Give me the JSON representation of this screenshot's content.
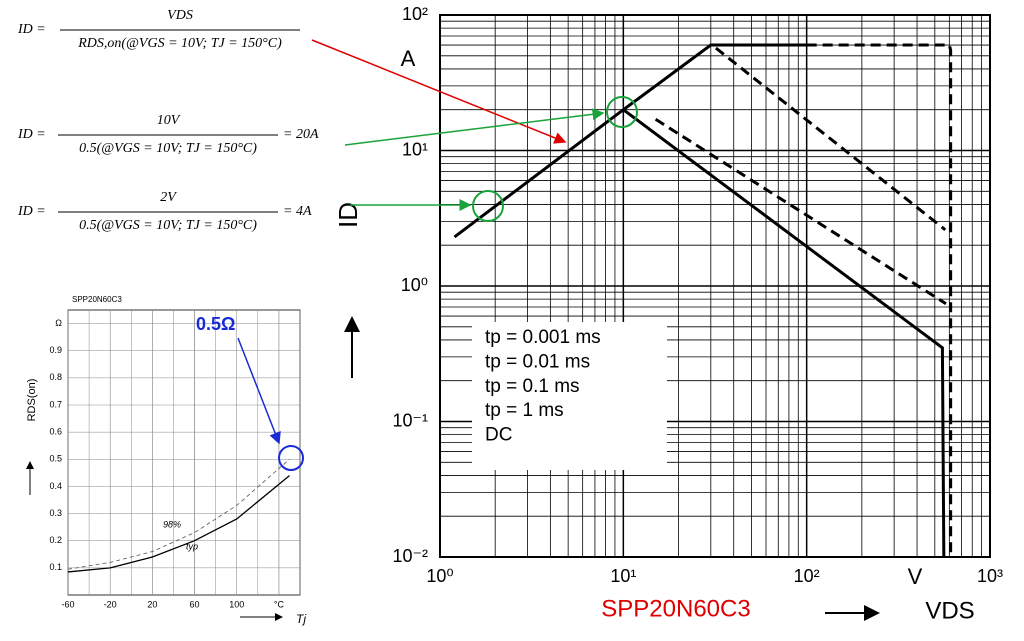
{
  "equations": [
    {
      "lhs": "ID =",
      "numerator": "VDS",
      "denominator": "RDS,on(@VGS = 10V; TJ = 150°C)",
      "rhs": ""
    },
    {
      "lhs": "ID =",
      "numerator": "10V",
      "denominator": "0.5(@VGS = 10V; TJ = 150°C)",
      "rhs": "= 20A"
    },
    {
      "lhs": "ID =",
      "numerator": "2V",
      "denominator": "0.5(@VGS = 10V; TJ = 150°C)",
      "rhs": "= 4A"
    }
  ],
  "annotation": "0.5Ω",
  "chart_data": [
    {
      "type": "line",
      "xlog": true,
      "ylog": true,
      "grid": true,
      "minor_grid": true,
      "ylabel": "ID",
      "yunit": "A",
      "xlabel": "VDS",
      "xunit": "V",
      "caption": "SPP20N60C3",
      "xlim": [
        1,
        1000
      ],
      "ylim": [
        0.01,
        100
      ],
      "xticks": [
        {
          "value": 1,
          "label": "10⁰"
        },
        {
          "value": 10,
          "label": "10¹"
        },
        {
          "value": 100,
          "label": "10²"
        },
        {
          "value": 1000,
          "label": "10³"
        }
      ],
      "yticks": [
        {
          "value": 0.01,
          "label": "10⁻²"
        },
        {
          "value": 0.1,
          "label": "10⁻¹"
        },
        {
          "value": 1,
          "label": "10⁰"
        },
        {
          "value": 10,
          "label": "10¹"
        },
        {
          "value": 100,
          "label": "10²"
        }
      ],
      "series": [
        {
          "name": "tp = 0.001 ms",
          "color": "#000000",
          "dash": "10,6",
          "x": [
            100,
            600,
            610,
            610
          ],
          "values": [
            60,
            60,
            55,
            0.01
          ]
        },
        {
          "name": "tp = 0.01 ms",
          "color": "#000000",
          "dash": "10,6",
          "x": [
            32,
            570
          ],
          "values": [
            57,
            2.6
          ]
        },
        {
          "name": "tp = 0.1 ms",
          "color": "#000000",
          "dash": "10,6",
          "x": [
            15,
            575
          ],
          "values": [
            17,
            0.74
          ]
        },
        {
          "name": "tp = 1 ms",
          "color": "#000000",
          "dash": "none",
          "x": [
            10,
            30,
            100
          ],
          "values": [
            20,
            60,
            60
          ]
        },
        {
          "name": "DC",
          "color": "#000000",
          "dash": "none",
          "x": [
            1.2,
            10,
            550,
            560
          ],
          "values": [
            2.3,
            20,
            0.35,
            0.01
          ]
        }
      ]
    },
    {
      "type": "line",
      "xlog": false,
      "ylog": false,
      "grid": true,
      "minor_grid": false,
      "title": "SPP20N60C3",
      "ylabel": "RDS(on)",
      "xlabel": "Tj",
      "xlim": [
        -60,
        160
      ],
      "ylim": [
        0,
        1.05
      ],
      "xticks": [
        -60,
        -20,
        20,
        60,
        100,
        {
          "value": 140,
          "label": "°C"
        }
      ],
      "yticks": [
        0.1,
        0.2,
        0.3,
        0.4,
        0.5,
        0.6,
        0.7,
        0.8,
        0.9,
        {
          "value": 1,
          "label": "Ω"
        }
      ],
      "series": [
        {
          "name": "98%",
          "color": "#555555",
          "dash": "4,3",
          "x": [
            -60,
            -20,
            20,
            60,
            100,
            150
          ],
          "values": [
            0.095,
            0.12,
            0.16,
            0.23,
            0.33,
            0.5
          ]
        },
        {
          "name": "typ",
          "color": "#000000",
          "dash": "none",
          "x": [
            -60,
            -20,
            20,
            60,
            100,
            150
          ],
          "values": [
            0.085,
            0.1,
            0.14,
            0.2,
            0.28,
            0.44
          ]
        }
      ]
    }
  ]
}
